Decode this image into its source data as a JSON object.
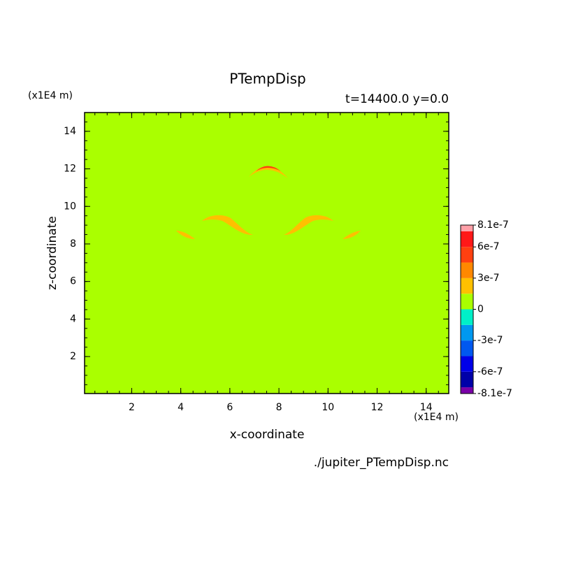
{
  "chart_data": {
    "type": "contour",
    "title": "PTempDisp",
    "subtitle": "t=14400.0 y=0.0",
    "x_label": "x-coordinate",
    "y_label": "z-coordinate",
    "x_unit": "(x1E4 m)",
    "y_unit": "(x1E4 m)",
    "source": "./jupiter_PTempDisp.nc",
    "xlim": [
      0.08,
      14.92
    ],
    "ylim": [
      0.03,
      15
    ],
    "xticks": [
      2,
      4,
      6,
      8,
      10,
      12,
      14
    ],
    "yticks": [
      2,
      4,
      6,
      8,
      10,
      12,
      14
    ],
    "levels": [
      -8.1e-07,
      -7.5e-07,
      -6e-07,
      -4.5e-07,
      -3e-07,
      -1.5e-07,
      0,
      1.5e-07,
      3e-07,
      4.5e-07,
      6e-07,
      7.5e-07,
      8.1e-07
    ],
    "colors": [
      "#7a00a8",
      "#0000a8",
      "#0000e8",
      "#0058f0",
      "#0098f0",
      "#00f0c8",
      "#aaff00",
      "#ffc000",
      "#ff8800",
      "#ff4010",
      "#ff1818",
      "#ffa0a8"
    ],
    "colorbar_ticks": [
      {
        "value": 8.1e-07,
        "label": "8.1e-7"
      },
      {
        "value": 6e-07,
        "label": "6e-7"
      },
      {
        "value": 3e-07,
        "label": "3e-7"
      },
      0,
      {
        "value": -3e-07,
        "label": "-3e-7"
      },
      {
        "value": -6e-07,
        "label": "-6e-7"
      },
      {
        "value": -8.1e-07,
        "label": "-8.1e-7"
      }
    ]
  }
}
